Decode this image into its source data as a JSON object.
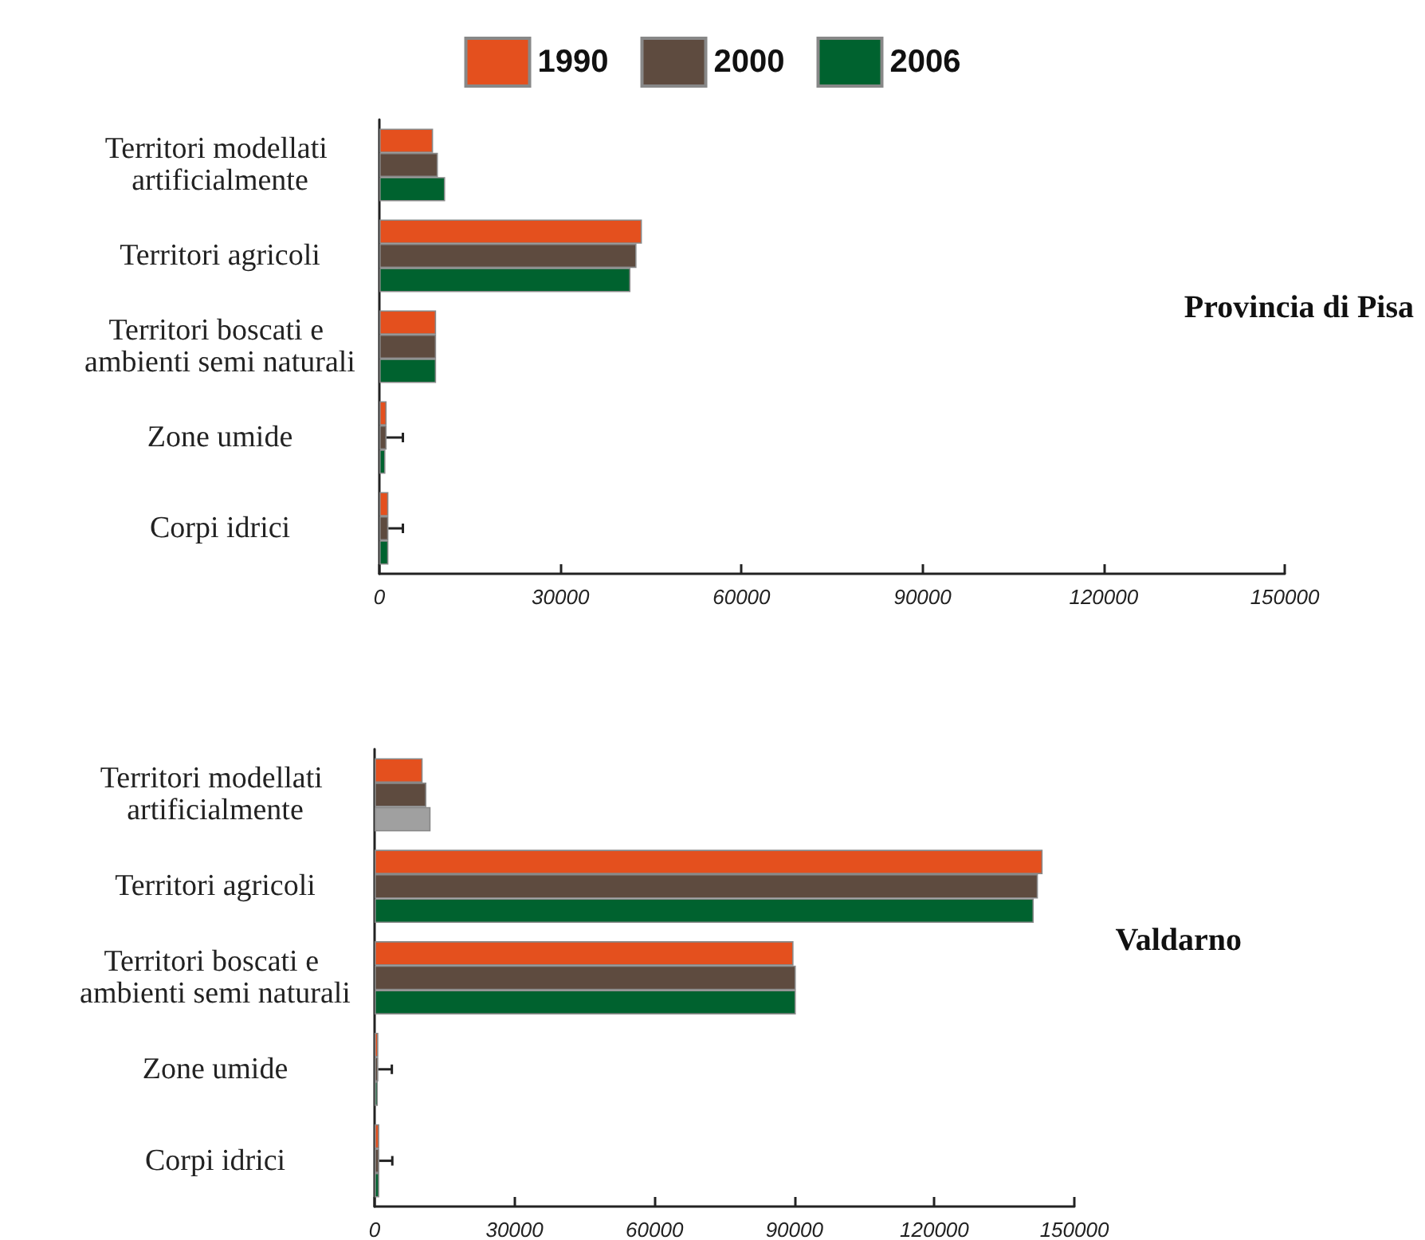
{
  "chart_data": [
    {
      "type": "bar",
      "orientation": "horizontal",
      "title": "Provincia di Pisa",
      "legend": "top",
      "grid": false,
      "categories": [
        "Territori modellati artificialmente",
        "Territori agricoli",
        "Territori boscati e ambienti semi naturali",
        "Zone umide",
        "Corpi idrici"
      ],
      "series": [
        {
          "name": "1990",
          "color": "#e4501e",
          "values": [
            8900,
            43500,
            9400,
            1200,
            1500
          ]
        },
        {
          "name": "2000",
          "color": "#5e4b3f",
          "values": [
            9700,
            42600,
            9400,
            1200,
            1500
          ],
          "errors": [
            null,
            null,
            null,
            [
              1200,
              3900
            ],
            [
              1500,
              3900
            ]
          ]
        },
        {
          "name": "2006",
          "color": "#00622f",
          "values": [
            10900,
            41600,
            9400,
            1000,
            1500
          ]
        }
      ],
      "xlim": [
        0,
        150000
      ],
      "xticks": [
        0,
        30000,
        60000,
        90000,
        120000,
        150000
      ]
    },
    {
      "type": "bar",
      "orientation": "horizontal",
      "title": "Valdarno",
      "legend": false,
      "grid": false,
      "categories": [
        "Territori modellati artificialmente",
        "Territori agricoli",
        "Territori boscati e ambienti semi naturali",
        "Zone umide",
        "Corpi idrici"
      ],
      "series": [
        {
          "name": "1990",
          "color": "#e4501e",
          "values": [
            10300,
            143200,
            89800,
            800,
            1000
          ]
        },
        {
          "name": "2000",
          "color": "#5e4b3f",
          "values": [
            11100,
            142200,
            90300,
            800,
            1000
          ],
          "errors": [
            null,
            null,
            null,
            [
              800,
              3700
            ],
            [
              1000,
              3800
            ]
          ]
        },
        {
          "name": "2006",
          "color": "#00622f",
          "colors": [
            "#a0a0a0",
            null,
            null,
            null,
            null
          ],
          "values": [
            12000,
            141300,
            90300,
            700,
            1000
          ]
        }
      ],
      "xlim": [
        0,
        150000
      ],
      "xticks": [
        0,
        30000,
        60000,
        90000,
        120000,
        150000
      ]
    }
  ]
}
